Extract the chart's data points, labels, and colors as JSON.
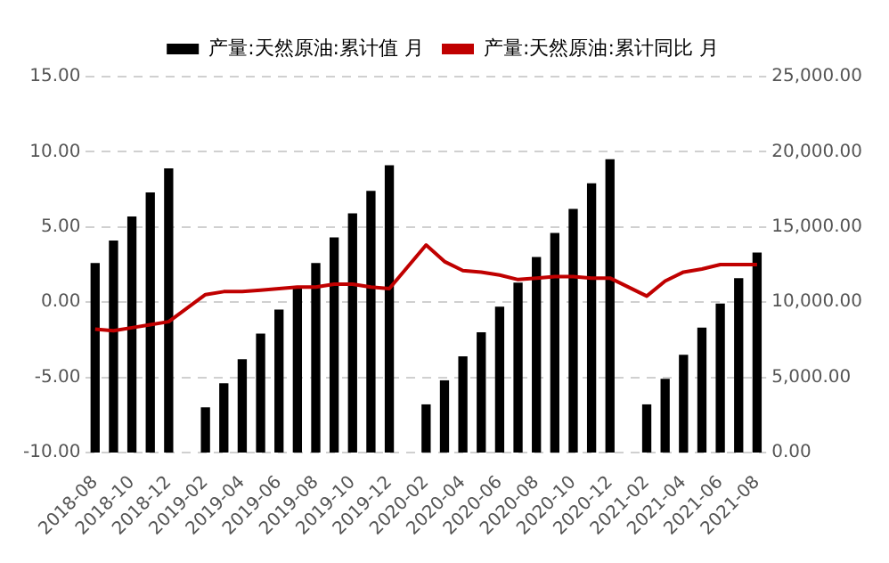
{
  "chart_data": {
    "type": "bar",
    "categories": [
      "2018-08",
      null,
      "2018-10",
      null,
      "2018-12",
      null,
      "2019-02",
      null,
      "2019-04",
      null,
      "2019-06",
      null,
      "2019-08",
      null,
      "2019-10",
      null,
      "2019-12",
      null,
      "2020-02",
      null,
      "2020-04",
      null,
      "2020-06",
      null,
      "2020-08",
      null,
      "2020-10",
      null,
      "2020-12",
      null,
      "2021-02",
      null,
      "2021-04",
      null,
      "2021-06",
      null,
      "2021-08"
    ],
    "series": [
      {
        "name": "产量:天然原油:累计值 月",
        "axis": "y2",
        "color": "#000000",
        "values": [
          12600,
          14100,
          15700,
          17300,
          18900,
          null,
          3000,
          4600,
          6200,
          7900,
          9500,
          10900,
          12600,
          14300,
          15900,
          17400,
          19100,
          null,
          3200,
          4800,
          6400,
          8000,
          9700,
          11300,
          13000,
          14600,
          16200,
          17900,
          19500,
          null,
          3200,
          4900,
          6500,
          8300,
          9900,
          11600,
          13300
        ]
      },
      {
        "name": "产量:天然原油:累计同比 月",
        "type": "line",
        "color": "#c00000",
        "values": [
          -1.8,
          -1.9,
          -1.7,
          -1.5,
          -1.3,
          null,
          0.5,
          0.7,
          0.7,
          0.8,
          0.9,
          1.0,
          1.0,
          1.2,
          1.2,
          1.0,
          0.9,
          null,
          3.8,
          2.7,
          2.1,
          2.0,
          1.8,
          1.5,
          1.6,
          1.7,
          1.7,
          1.6,
          1.6,
          null,
          0.4,
          1.4,
          2.0,
          2.2,
          2.5,
          2.5,
          2.5
        ]
      }
    ],
    "ylim": [
      -10,
      15
    ],
    "yticks": [
      {
        "value": -10,
        "label": "-10.00"
      },
      {
        "value": -5,
        "label": "-5.00"
      },
      {
        "value": 0,
        "label": "0.00"
      },
      {
        "value": 5,
        "label": "5.00"
      },
      {
        "value": 10,
        "label": "10.00"
      },
      {
        "value": 15,
        "label": "15.00"
      }
    ],
    "y2lim": [
      0,
      25000
    ],
    "y2ticks": [
      {
        "value": 0,
        "label": "0.00"
      },
      {
        "value": 5000,
        "label": "5,000.00"
      },
      {
        "value": 10000,
        "label": "10,000.00"
      },
      {
        "value": 15000,
        "label": "15,000.00"
      },
      {
        "value": 20000,
        "label": "20,000.00"
      },
      {
        "value": 25000,
        "label": "25,000.00"
      }
    ],
    "grid": "y",
    "legend": "top",
    "marker": "none",
    "line_style": "solid"
  }
}
